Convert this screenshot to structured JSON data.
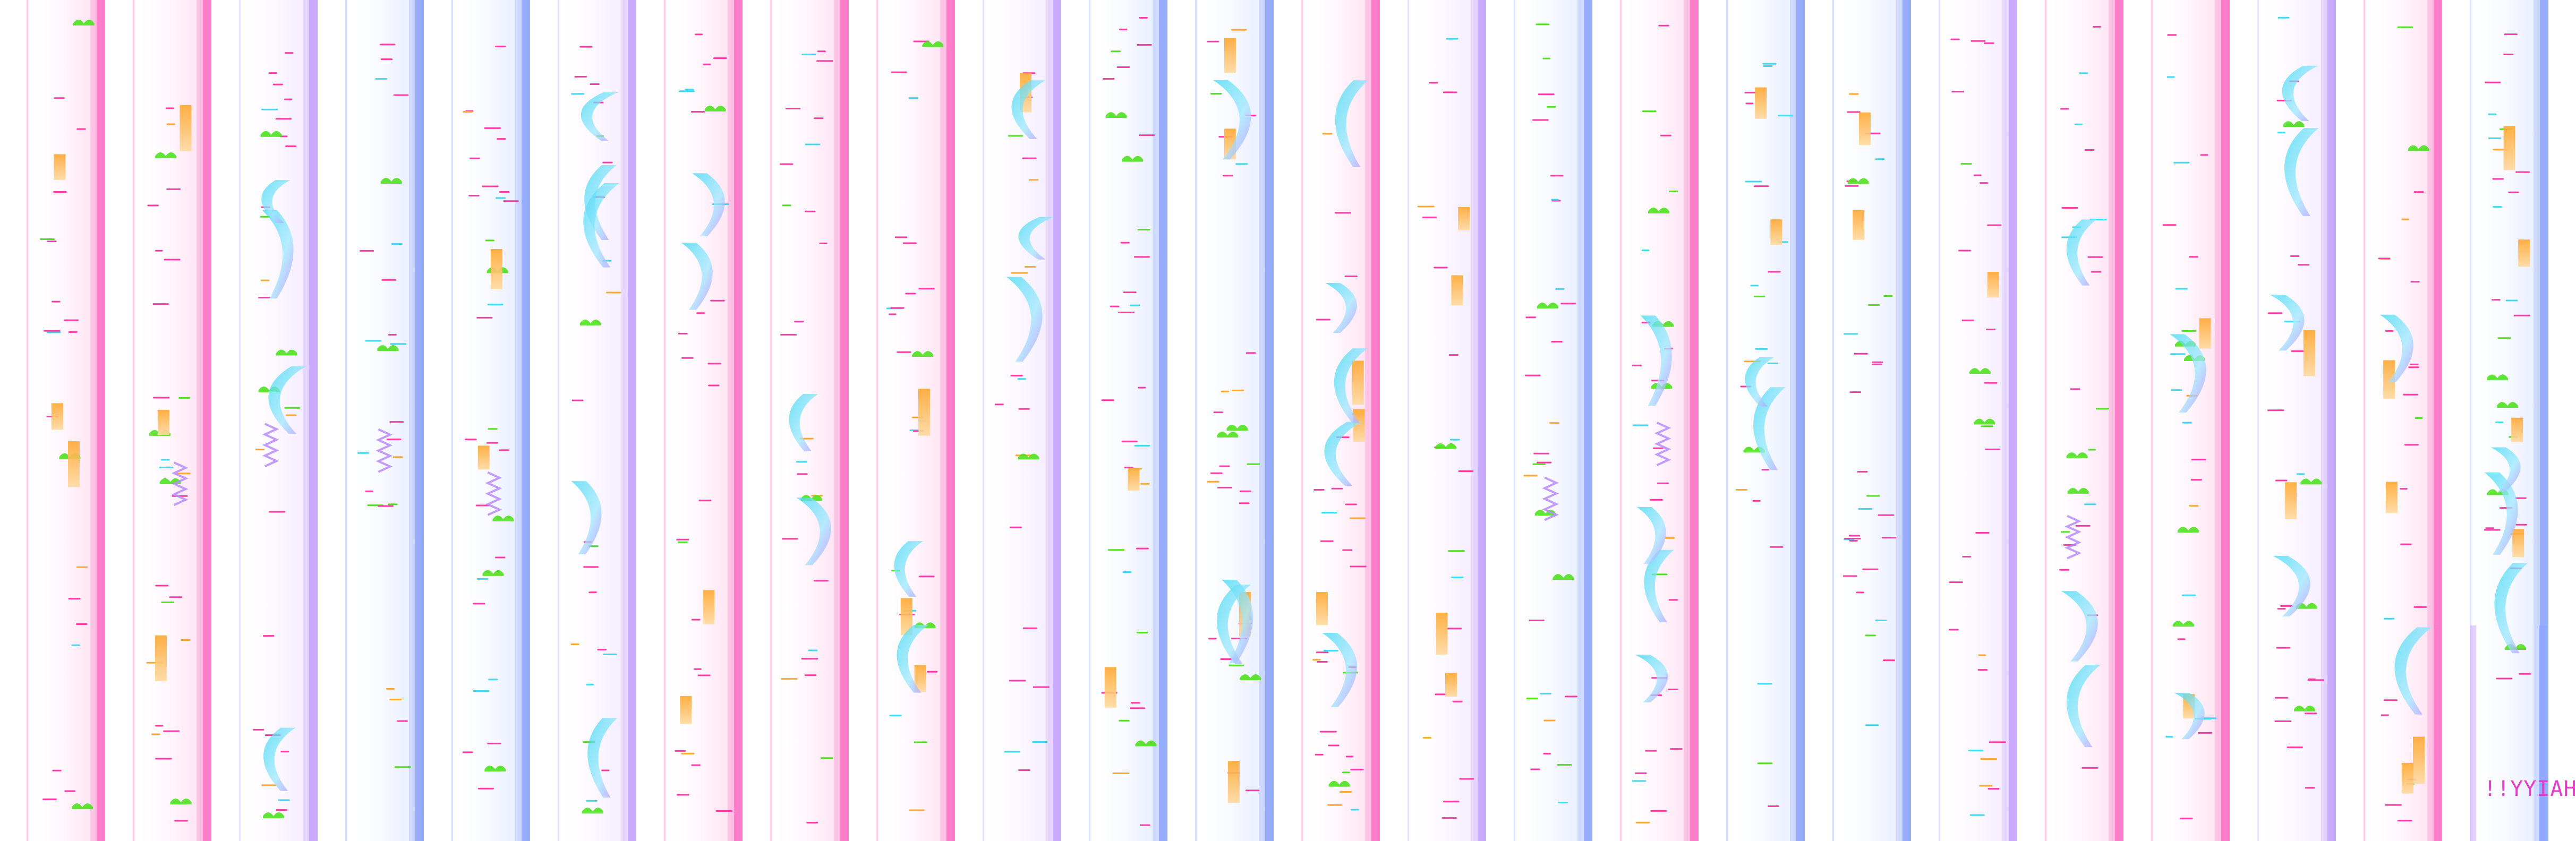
{
  "sheet": {
    "title": "",
    "column_count": 24,
    "corner_text": "!!YYIAH",
    "colors": {
      "background": "#ffffff",
      "note_pink": "#ff3aa7",
      "note_cyan": "#3fd8f0",
      "note_orange": "#ffa730",
      "note_green": "#4fe11f",
      "slide_purple": "#b98bff",
      "rail_pink": "#ff73c5",
      "rail_blue": "#8ea7ff",
      "rail_violet": "#c6a3ff"
    },
    "columns": [
      {
        "rail": "pink"
      },
      {
        "rail": "pink"
      },
      {
        "rail": "violet"
      },
      {
        "rail": "blue"
      },
      {
        "rail": "blue"
      },
      {
        "rail": "violet"
      },
      {
        "rail": "pink"
      },
      {
        "rail": "pink"
      },
      {
        "rail": "pink"
      },
      {
        "rail": "violet"
      },
      {
        "rail": "blue"
      },
      {
        "rail": "blue"
      },
      {
        "rail": "pink"
      },
      {
        "rail": "violet"
      },
      {
        "rail": "blue"
      },
      {
        "rail": "pink"
      },
      {
        "rail": "blue"
      },
      {
        "rail": "blue"
      },
      {
        "rail": "violet"
      },
      {
        "rail": "pink"
      },
      {
        "rail": "pink"
      },
      {
        "rail": "violet"
      },
      {
        "rail": "pink"
      },
      {
        "rail": "blue"
      }
    ]
  }
}
